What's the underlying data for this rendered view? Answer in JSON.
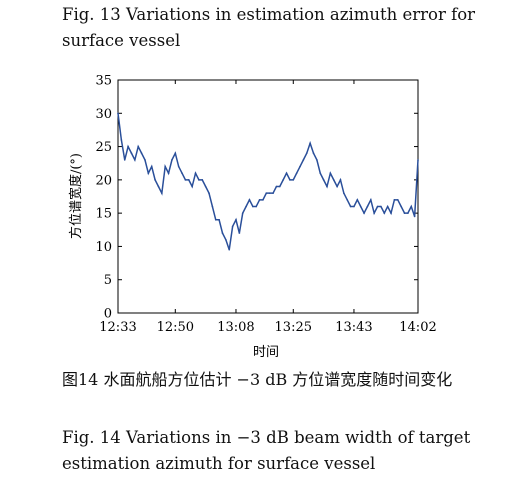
{
  "captions": {
    "top": "Fig. 13  Variations in estimation azimuth error for surface vessel",
    "chinese": "图14   水面航船方位估计 −3 dB 方位谱宽度随时间变化",
    "english": "Fig. 14  Variations in −3 dB beam width of target estimation azimuth for surface vessel"
  },
  "chart_data": {
    "type": "line",
    "title": "",
    "xlabel": "时间",
    "ylabel": "方位谱宽度/(°)",
    "x_ticks": [
      "12:33",
      "12:50",
      "13:08",
      "13:25",
      "13:43",
      "14:02"
    ],
    "y_ticks": [
      "0",
      "5",
      "10",
      "15",
      "20",
      "25",
      "30",
      "35"
    ],
    "ylim": [
      0,
      35
    ],
    "xlim": [
      "12:33",
      "14:02"
    ],
    "grid": false,
    "line_color": "#2a4f9a",
    "series": [
      {
        "x": [
          "12:33",
          "12:34",
          "12:35",
          "12:36",
          "12:37",
          "12:38",
          "12:39",
          "12:40",
          "12:41",
          "12:42",
          "12:43",
          "12:44",
          "12:45",
          "12:46",
          "12:47",
          "12:48",
          "12:49",
          "12:50",
          "12:51",
          "12:52",
          "12:53",
          "12:54",
          "12:55",
          "12:56",
          "12:57",
          "12:58",
          "12:59",
          "13:00",
          "13:01",
          "13:02",
          "13:03",
          "13:04",
          "13:05",
          "13:06",
          "13:07",
          "13:08",
          "13:09",
          "13:10",
          "13:11",
          "13:12",
          "13:13",
          "13:14",
          "13:15",
          "13:16",
          "13:17",
          "13:18",
          "13:19",
          "13:20",
          "13:21",
          "13:22",
          "13:23",
          "13:24",
          "13:25",
          "13:26",
          "13:27",
          "13:28",
          "13:29",
          "13:30",
          "13:31",
          "13:32",
          "13:33",
          "13:34",
          "13:35",
          "13:36",
          "13:37",
          "13:38",
          "13:39",
          "13:40",
          "13:41",
          "13:42",
          "13:43",
          "13:44",
          "13:45",
          "13:46",
          "13:47",
          "13:48",
          "13:49",
          "13:50",
          "13:51",
          "13:52",
          "13:53",
          "13:54",
          "13:55",
          "13:56",
          "13:57",
          "13:58",
          "13:59",
          "14:00",
          "14:01",
          "14:02"
        ],
        "values": [
          30,
          26,
          23,
          25,
          24,
          23,
          25,
          24,
          23,
          21,
          22,
          20,
          19,
          18,
          22,
          21,
          23,
          24,
          22,
          21,
          20,
          20,
          19,
          21,
          20,
          20,
          19,
          18,
          16,
          14,
          14,
          12,
          11,
          9.5,
          13,
          14,
          12,
          15,
          16,
          17,
          16,
          16,
          17,
          17,
          18,
          18,
          18,
          19,
          19,
          20,
          21,
          20,
          20,
          21,
          22,
          23,
          24,
          25.5,
          24,
          23,
          21,
          20,
          19,
          21,
          20,
          19,
          20,
          18,
          17,
          16,
          16,
          17,
          16,
          15,
          16,
          17,
          15,
          16,
          16,
          15,
          16,
          15,
          17,
          17,
          16,
          15,
          15,
          16,
          14.5,
          23
        ]
      }
    ]
  }
}
